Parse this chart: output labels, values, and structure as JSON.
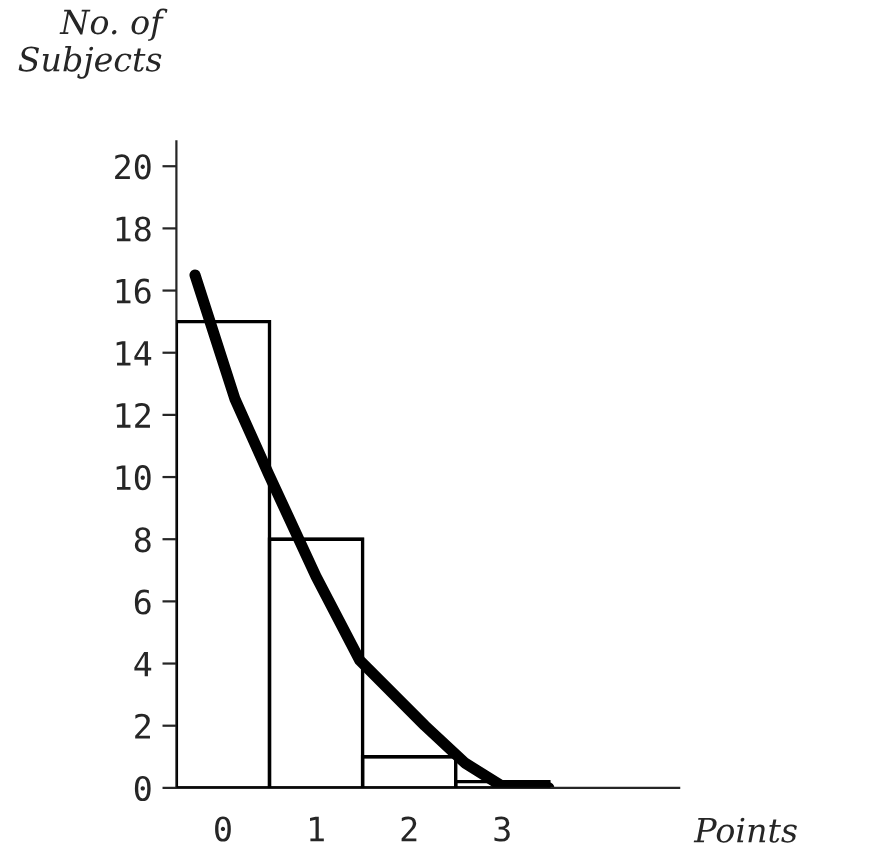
{
  "chart_data": {
    "type": "histogram",
    "xlabel": "Points",
    "ylabel": "No. of\nSubjects",
    "bins": [
      -0.5,
      0.5,
      1.5,
      2.5,
      3.5
    ],
    "values": [
      15,
      8,
      1,
      0.2
    ],
    "color": "#ffffff",
    "series": [
      {
        "type": "line",
        "color": "#000000",
        "x": [
          -0.3,
          0.13,
          0.49,
          1.0,
          1.47,
          2.17,
          2.6,
          3.0,
          3.5
        ],
        "values": [
          16.5,
          12.5,
          10.1,
          6.8,
          4.1,
          2.0,
          0.8,
          0.05,
          0
        ]
      }
    ],
    "xlim": [
      -0.5,
      4.9
    ],
    "xticks": [
      0,
      1,
      2,
      3
    ],
    "ylim": [
      0,
      20.8
    ],
    "yticks": [
      0,
      2,
      4,
      6,
      8,
      10,
      12,
      14,
      16,
      18,
      20
    ],
    "grid": false,
    "legend": false
  }
}
